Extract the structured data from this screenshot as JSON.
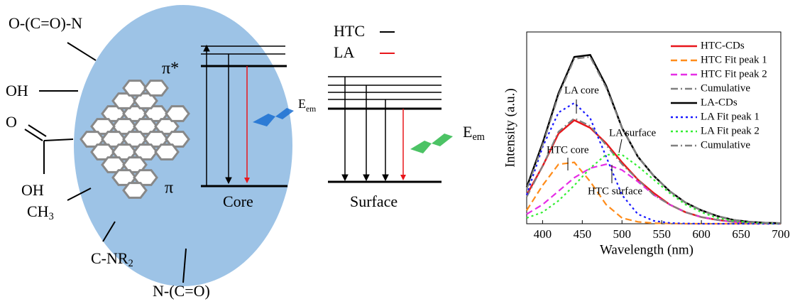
{
  "diagram": {
    "groups": [
      {
        "base": "O-(C=O)-N",
        "sub": ""
      },
      {
        "base": "OH",
        "sub": ""
      },
      {
        "base": "O",
        "sub": ""
      },
      {
        "base": "OH",
        "sub": ""
      },
      {
        "base": "CH",
        "sub": "3"
      },
      {
        "base": "C-NR",
        "sub": "2"
      },
      {
        "base": "N-(C=O)",
        "sub": ""
      }
    ],
    "pi_star": "π*",
    "pi": "π",
    "core": "Core",
    "surface": "Surface",
    "legend": [
      "HTC",
      "LA"
    ],
    "emission": {
      "base": "E",
      "sub": "em"
    }
  },
  "chart_data": {
    "type": "line",
    "xlabel": "Wavelength (nm)",
    "ylabel": "Intensity (a.u.)",
    "xlim": [
      380,
      700
    ],
    "ylim": [
      0,
      1
    ],
    "xticks": [
      400,
      450,
      500,
      550,
      600,
      650,
      700
    ],
    "x": [
      380,
      400,
      420,
      440,
      460,
      480,
      500,
      520,
      540,
      560,
      580,
      600,
      620,
      640,
      660,
      680,
      700
    ],
    "series": [
      {
        "name": "HTC-CDs",
        "color": "#e8161b",
        "dash": "solid",
        "values": [
          0.15,
          0.3,
          0.47,
          0.54,
          0.5,
          0.42,
          0.32,
          0.23,
          0.16,
          0.1,
          0.06,
          0.035,
          0.02,
          0.01,
          0.005,
          0.002,
          0.001
        ]
      },
      {
        "name": "HTC Fit peak 1",
        "color": "#ff8c1a",
        "dash": "dashed",
        "values": [
          0.07,
          0.2,
          0.31,
          0.32,
          0.22,
          0.1,
          0.03,
          0.01,
          0.003,
          0.001,
          0,
          0,
          0,
          0,
          0,
          0,
          0
        ]
      },
      {
        "name": "HTC Fit peak 2",
        "color": "#e62ee6",
        "dash": "dashed",
        "values": [
          0.05,
          0.1,
          0.17,
          0.24,
          0.29,
          0.31,
          0.28,
          0.22,
          0.15,
          0.1,
          0.06,
          0.035,
          0.02,
          0.01,
          0.005,
          0.002,
          0.001
        ]
      },
      {
        "name": "Cumulative",
        "color": "#808080",
        "dash": "dashdot",
        "values": [
          0.14,
          0.3,
          0.48,
          0.55,
          0.51,
          0.41,
          0.31,
          0.23,
          0.15,
          0.1,
          0.06,
          0.035,
          0.02,
          0.01,
          0.005,
          0.002,
          0.001
        ]
      },
      {
        "name": "LA-CDs",
        "color": "#000000",
        "dash": "solid",
        "values": [
          0.19,
          0.42,
          0.68,
          0.87,
          0.88,
          0.72,
          0.5,
          0.35,
          0.25,
          0.17,
          0.11,
          0.07,
          0.04,
          0.02,
          0.01,
          0.005,
          0.003
        ]
      },
      {
        "name": "LA Fit peak 1",
        "color": "#1a1aff",
        "dash": "dotted",
        "values": [
          0.15,
          0.4,
          0.58,
          0.63,
          0.55,
          0.35,
          0.15,
          0.05,
          0.015,
          0.004,
          0.001,
          0,
          0,
          0,
          0,
          0,
          0
        ]
      },
      {
        "name": "LA Fit peak 2",
        "color": "#33ee33",
        "dash": "dotted",
        "values": [
          0.03,
          0.06,
          0.12,
          0.2,
          0.29,
          0.36,
          0.36,
          0.3,
          0.23,
          0.16,
          0.1,
          0.06,
          0.03,
          0.015,
          0.007,
          0.003,
          0.001
        ]
      },
      {
        "name": "Cumulative",
        "color": "#808080",
        "dash": "dashdot",
        "values": [
          0.18,
          0.41,
          0.67,
          0.86,
          0.87,
          0.71,
          0.5,
          0.35,
          0.25,
          0.17,
          0.11,
          0.07,
          0.04,
          0.02,
          0.01,
          0.005,
          0.003
        ]
      }
    ],
    "annotations": [
      "LA core",
      "LA surface",
      "HTC core",
      "HTC surface"
    ]
  }
}
